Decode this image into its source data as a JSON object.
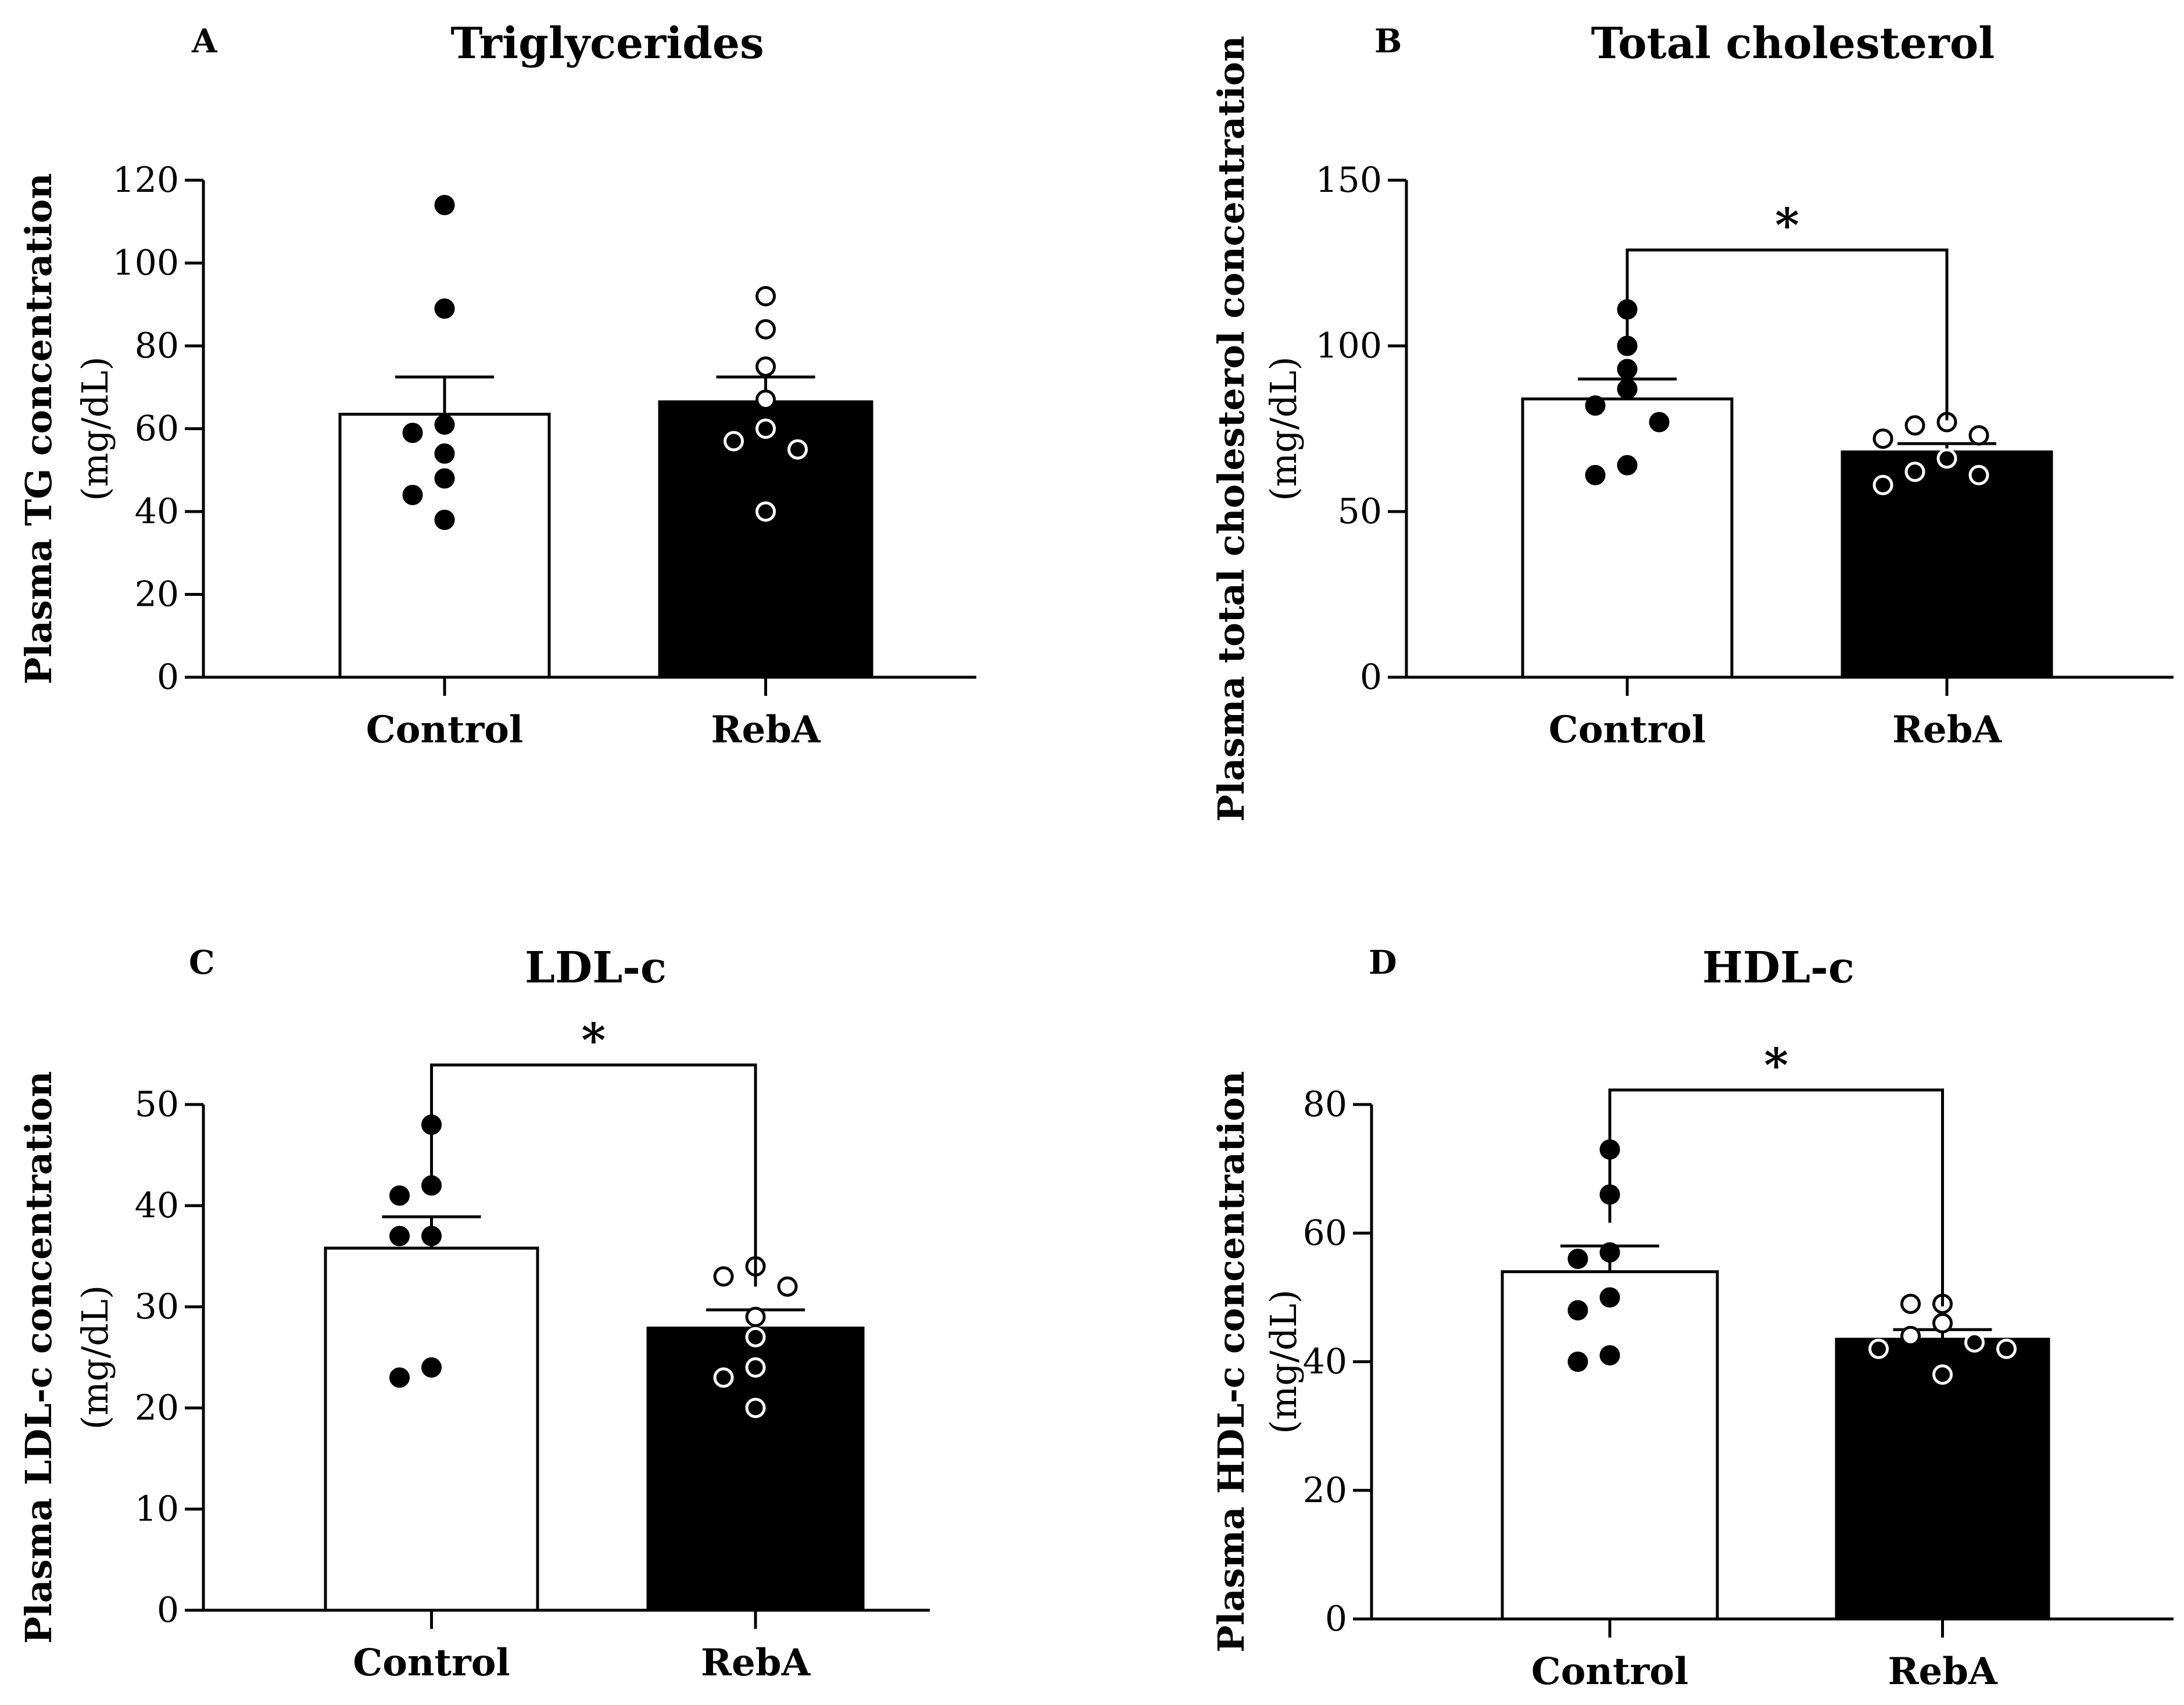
{
  "chart_data": [
    {
      "type": "bar",
      "panel": "A",
      "title": "Triglycerides",
      "ylabel": "Plasma TG concentration",
      "yunit": "(mg/dL)",
      "categories": [
        "Control",
        "RebA"
      ],
      "values": [
        63.5,
        66.5
      ],
      "sem": [
        9,
        6
      ],
      "ylim": [
        0,
        120
      ],
      "yticks": [
        "0",
        "20",
        "40",
        "60",
        "80",
        "100",
        "120"
      ],
      "points": [
        [
          114,
          89,
          61,
          59,
          54,
          48,
          44,
          38
        ],
        [
          92,
          84,
          75,
          67,
          60,
          57,
          55,
          40
        ]
      ],
      "significance": ""
    },
    {
      "type": "bar",
      "panel": "B",
      "title": "Total cholesterol",
      "ylabel": "Plasma total cholesterol concentration",
      "yunit": "(mg/dL)",
      "categories": [
        "Control",
        "RebA"
      ],
      "values": [
        84,
        68
      ],
      "sem": [
        6,
        2.5
      ],
      "ylim": [
        0,
        150
      ],
      "yticks": [
        "0",
        "50",
        "100",
        "150"
      ],
      "points": [
        [
          111,
          100,
          93,
          87,
          82,
          77,
          64,
          61
        ],
        [
          77,
          76,
          73,
          72,
          66,
          62,
          61,
          58
        ]
      ],
      "significance": "*"
    },
    {
      "type": "bar",
      "panel": "C",
      "title": "LDL-c",
      "ylabel": "Plasma LDL-c concentration",
      "yunit": "(mg/dL)",
      "categories": [
        "Control",
        "RebA"
      ],
      "values": [
        35.8,
        27.9
      ],
      "sem": [
        3.1,
        1.8
      ],
      "ylim": [
        0,
        50
      ],
      "yticks": [
        "0",
        "10",
        "20",
        "30",
        "40",
        "50"
      ],
      "points": [
        [
          48,
          42,
          41,
          37,
          37,
          24,
          23
        ],
        [
          34,
          33,
          32,
          29,
          27,
          24,
          23,
          20
        ]
      ],
      "significance": "*"
    },
    {
      "type": "bar",
      "panel": "D",
      "title": "HDL-c",
      "ylabel": "Plasma HDL-c concentration",
      "yunit": "(mg/dL)",
      "categories": [
        "Control",
        "RebA"
      ],
      "values": [
        54,
        43.5
      ],
      "sem": [
        4,
        1.5
      ],
      "ylim": [
        0,
        80
      ],
      "yticks": [
        "0",
        "20",
        "40",
        "60",
        "80"
      ],
      "points": [
        [
          73,
          66,
          57,
          56,
          50,
          48,
          41,
          40
        ],
        [
          49,
          49,
          46,
          44,
          43,
          42,
          42,
          38
        ]
      ],
      "significance": "*"
    }
  ]
}
